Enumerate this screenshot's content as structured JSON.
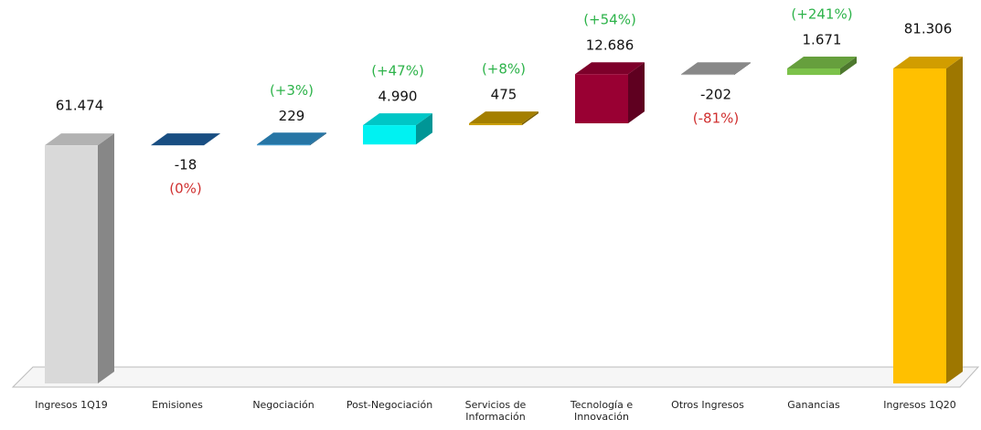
{
  "chart_data": {
    "type": "waterfall",
    "categories": [
      "Ingresos 1Q19",
      "Emisiones",
      "Negociación",
      "Post-Negociación",
      "Servicios de Información",
      "Tecnología e Innovación",
      "Otros Ingresos",
      "Ganancias",
      "Ingresos 1Q20"
    ],
    "measure": [
      "total",
      "relative",
      "relative",
      "relative",
      "relative",
      "relative",
      "relative",
      "relative",
      "total"
    ],
    "values": [
      61474,
      -18,
      229,
      4990,
      475,
      12686,
      -202,
      1671,
      81306
    ],
    "value_labels": [
      "61.474",
      "-18",
      "229",
      "4.990",
      "475",
      "12.686",
      "-202",
      "1.671",
      "81.306"
    ],
    "annotations": [
      null,
      "(0%)",
      "(+3%)",
      "(+47%)",
      "(+8%)",
      "(+54%)",
      "(-81%)",
      "(+241%)",
      null
    ],
    "colors": [
      "#d9d9d9",
      "#1f5f9e",
      "#2e8fc9",
      "#00f2f2",
      "#c89b00",
      "#990033",
      "#a6a6a6",
      "#7cc24a",
      "#ffc000"
    ],
    "increase_label_color": "#2db34a",
    "decrease_label_color": "#d03030"
  }
}
